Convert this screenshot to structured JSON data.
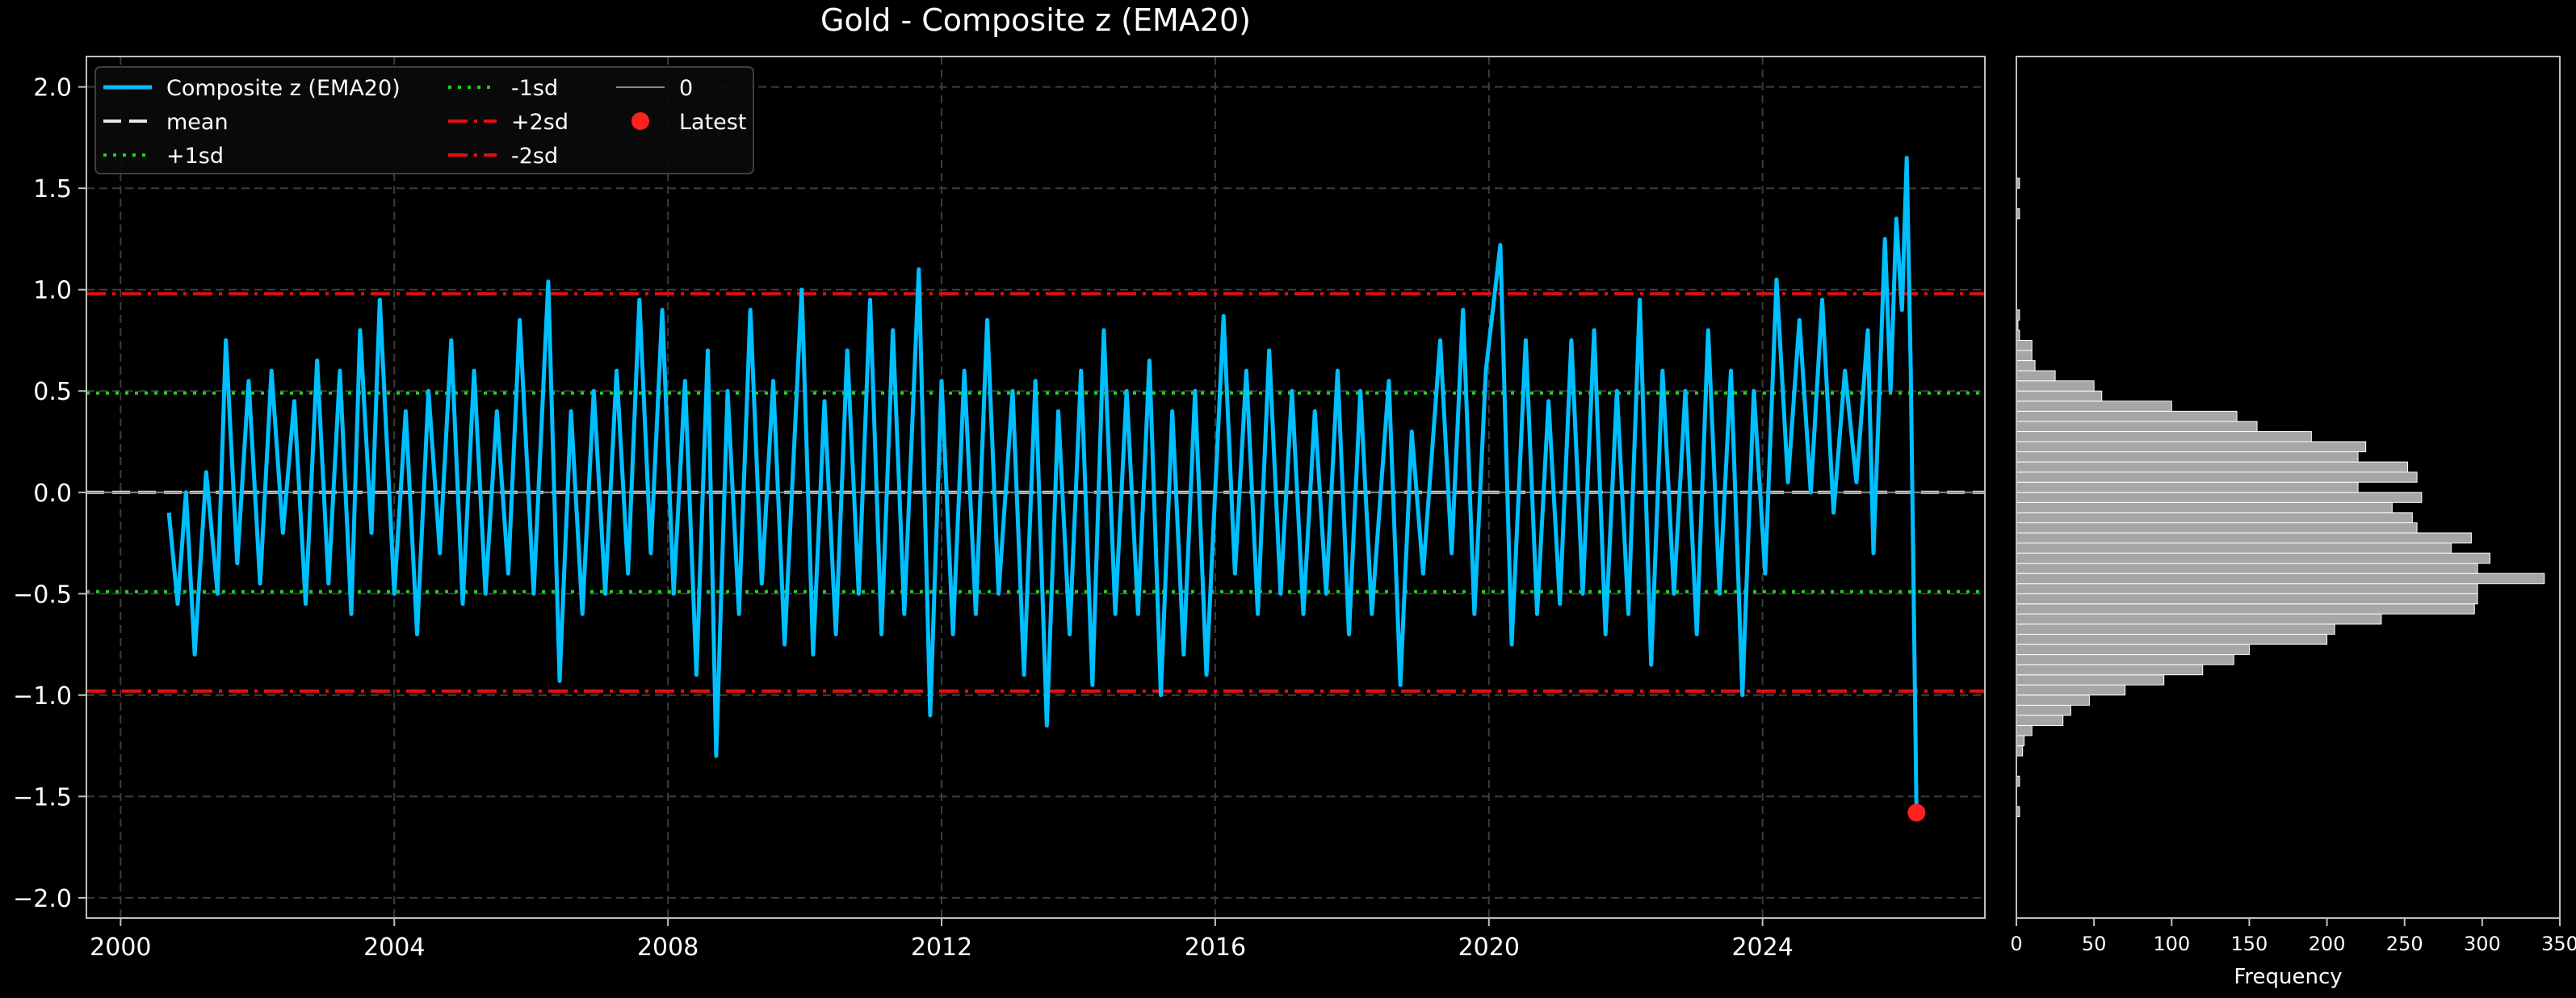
{
  "chart_data": [
    {
      "type": "line",
      "title": "Gold - Composite z (EMA20)",
      "xlabel": "",
      "ylabel": "",
      "xlim": [
        "1999-07-01",
        "2027-04-01"
      ],
      "ylim": [
        -2.1,
        2.15
      ],
      "x_ticks": [
        "2000",
        "2004",
        "2008",
        "2012",
        "2016",
        "2020",
        "2024"
      ],
      "y_ticks": [
        "2.0",
        "1.5",
        "1.0",
        "0.5",
        "0.0",
        "−0.5",
        "−1.0",
        "−1.5",
        "−2.0"
      ],
      "grid": true,
      "legend_position": "top-left",
      "legend": [
        "Composite z (EMA20)",
        "mean",
        "+1sd",
        "-1sd",
        "+2sd",
        "-2sd",
        "0",
        "Latest"
      ],
      "reference_lines": [
        {
          "name": "mean",
          "y": 0.0,
          "style": "dashed",
          "color": "#e6e6e6"
        },
        {
          "name": "+1sd",
          "y": 0.49,
          "style": "dotted",
          "color": "#22cc22"
        },
        {
          "name": "-1sd",
          "y": -0.49,
          "style": "dotted",
          "color": "#22cc22"
        },
        {
          "name": "+2sd",
          "y": 0.98,
          "style": "dashdot",
          "color": "#e01010"
        },
        {
          "name": "-2sd",
          "y": -0.98,
          "style": "dashdot",
          "color": "#e01010"
        },
        {
          "name": "0",
          "y": 0.0,
          "style": "solid",
          "color": "#888888"
        }
      ],
      "series": [
        {
          "name": "Composite z (EMA20)",
          "color": "#00bfff",
          "points": [
            [
              "2000-09-15",
              -0.1
            ],
            [
              "2000-11-01",
              -0.55
            ],
            [
              "2000-12-15",
              0.0
            ],
            [
              "2001-02-01",
              -0.8
            ],
            [
              "2001-04-01",
              0.1
            ],
            [
              "2001-06-01",
              -0.5
            ],
            [
              "2001-07-15",
              0.75
            ],
            [
              "2001-09-15",
              -0.35
            ],
            [
              "2001-11-15",
              0.55
            ],
            [
              "2002-01-15",
              -0.45
            ],
            [
              "2002-03-15",
              0.6
            ],
            [
              "2002-05-15",
              -0.2
            ],
            [
              "2002-07-15",
              0.45
            ],
            [
              "2002-09-15",
              -0.55
            ],
            [
              "2002-11-15",
              0.65
            ],
            [
              "2003-01-15",
              -0.45
            ],
            [
              "2003-03-15",
              0.6
            ],
            [
              "2003-05-15",
              -0.6
            ],
            [
              "2003-07-01",
              0.8
            ],
            [
              "2003-09-01",
              -0.2
            ],
            [
              "2003-10-15",
              0.95
            ],
            [
              "2004-01-01",
              -0.5
            ],
            [
              "2004-03-01",
              0.4
            ],
            [
              "2004-05-01",
              -0.7
            ],
            [
              "2004-07-01",
              0.5
            ],
            [
              "2004-09-01",
              -0.3
            ],
            [
              "2004-11-01",
              0.75
            ],
            [
              "2005-01-01",
              -0.55
            ],
            [
              "2005-03-01",
              0.6
            ],
            [
              "2005-05-01",
              -0.5
            ],
            [
              "2005-07-01",
              0.4
            ],
            [
              "2005-09-01",
              -0.4
            ],
            [
              "2005-11-01",
              0.85
            ],
            [
              "2006-01-15",
              -0.5
            ],
            [
              "2006-04-01",
              1.04
            ],
            [
              "2006-06-01",
              -0.93
            ],
            [
              "2006-08-01",
              0.4
            ],
            [
              "2006-10-01",
              -0.6
            ],
            [
              "2006-12-01",
              0.5
            ],
            [
              "2007-02-01",
              -0.5
            ],
            [
              "2007-04-01",
              0.6
            ],
            [
              "2007-06-01",
              -0.4
            ],
            [
              "2007-08-01",
              0.95
            ],
            [
              "2007-10-01",
              -0.3
            ],
            [
              "2007-12-01",
              0.9
            ],
            [
              "2008-02-01",
              -0.5
            ],
            [
              "2008-04-01",
              0.55
            ],
            [
              "2008-06-01",
              -0.9
            ],
            [
              "2008-08-01",
              0.7
            ],
            [
              "2008-09-15",
              -1.3
            ],
            [
              "2008-11-15",
              0.5
            ],
            [
              "2009-01-15",
              -0.6
            ],
            [
              "2009-03-15",
              0.9
            ],
            [
              "2009-05-15",
              -0.45
            ],
            [
              "2009-07-15",
              0.55
            ],
            [
              "2009-09-15",
              -0.75
            ],
            [
              "2009-12-15",
              1.0
            ],
            [
              "2010-02-15",
              -0.8
            ],
            [
              "2010-04-15",
              0.45
            ],
            [
              "2010-06-15",
              -0.7
            ],
            [
              "2010-08-15",
              0.7
            ],
            [
              "2010-10-15",
              -0.5
            ],
            [
              "2010-12-15",
              0.95
            ],
            [
              "2011-02-15",
              -0.7
            ],
            [
              "2011-04-15",
              0.8
            ],
            [
              "2011-06-15",
              -0.6
            ],
            [
              "2011-09-01",
              1.1
            ],
            [
              "2011-11-01",
              -1.1
            ],
            [
              "2012-01-01",
              0.55
            ],
            [
              "2012-03-01",
              -0.7
            ],
            [
              "2012-05-01",
              0.6
            ],
            [
              "2012-07-01",
              -0.6
            ],
            [
              "2012-09-01",
              0.85
            ],
            [
              "2012-11-01",
              -0.5
            ],
            [
              "2013-01-15",
              0.5
            ],
            [
              "2013-03-15",
              -0.9
            ],
            [
              "2013-05-15",
              0.55
            ],
            [
              "2013-07-15",
              -1.15
            ],
            [
              "2013-09-15",
              0.4
            ],
            [
              "2013-11-15",
              -0.7
            ],
            [
              "2014-01-15",
              0.6
            ],
            [
              "2014-03-15",
              -0.95
            ],
            [
              "2014-05-15",
              0.8
            ],
            [
              "2014-07-15",
              -0.6
            ],
            [
              "2014-09-15",
              0.5
            ],
            [
              "2014-11-15",
              -0.6
            ],
            [
              "2015-01-15",
              0.65
            ],
            [
              "2015-03-15",
              -1.0
            ],
            [
              "2015-05-15",
              0.4
            ],
            [
              "2015-07-15",
              -0.8
            ],
            [
              "2015-09-15",
              0.5
            ],
            [
              "2015-11-15",
              -0.9
            ],
            [
              "2016-02-15",
              0.87
            ],
            [
              "2016-04-15",
              -0.4
            ],
            [
              "2016-06-15",
              0.6
            ],
            [
              "2016-08-15",
              -0.6
            ],
            [
              "2016-10-15",
              0.7
            ],
            [
              "2016-12-15",
              -0.5
            ],
            [
              "2017-02-15",
              0.5
            ],
            [
              "2017-04-15",
              -0.6
            ],
            [
              "2017-06-15",
              0.4
            ],
            [
              "2017-08-15",
              -0.5
            ],
            [
              "2017-10-15",
              0.6
            ],
            [
              "2017-12-15",
              -0.7
            ],
            [
              "2018-02-15",
              0.5
            ],
            [
              "2018-04-15",
              -0.6
            ],
            [
              "2018-07-15",
              0.55
            ],
            [
              "2018-09-15",
              -0.95
            ],
            [
              "2018-11-15",
              0.3
            ],
            [
              "2019-01-15",
              -0.4
            ],
            [
              "2019-04-15",
              0.75
            ],
            [
              "2019-06-15",
              -0.3
            ],
            [
              "2019-08-15",
              0.9
            ],
            [
              "2019-10-15",
              -0.6
            ],
            [
              "2019-12-15",
              0.6
            ],
            [
              "2020-03-01",
              1.22
            ],
            [
              "2020-05-01",
              -0.75
            ],
            [
              "2020-07-15",
              0.75
            ],
            [
              "2020-09-15",
              -0.6
            ],
            [
              "2020-11-15",
              0.45
            ],
            [
              "2021-01-15",
              -0.55
            ],
            [
              "2021-03-15",
              0.75
            ],
            [
              "2021-05-15",
              -0.5
            ],
            [
              "2021-07-15",
              0.8
            ],
            [
              "2021-09-15",
              -0.7
            ],
            [
              "2021-11-15",
              0.5
            ],
            [
              "2022-01-15",
              -0.6
            ],
            [
              "2022-03-15",
              0.95
            ],
            [
              "2022-05-15",
              -0.85
            ],
            [
              "2022-07-15",
              0.6
            ],
            [
              "2022-09-15",
              -0.5
            ],
            [
              "2022-11-15",
              0.5
            ],
            [
              "2023-01-15",
              -0.7
            ],
            [
              "2023-03-15",
              0.8
            ],
            [
              "2023-05-15",
              -0.5
            ],
            [
              "2023-07-15",
              0.6
            ],
            [
              "2023-09-15",
              -1.0
            ],
            [
              "2023-11-15",
              0.5
            ],
            [
              "2024-01-15",
              -0.4
            ],
            [
              "2024-03-15",
              1.05
            ],
            [
              "2024-05-15",
              0.05
            ],
            [
              "2024-07-15",
              0.85
            ],
            [
              "2024-09-15",
              0.0
            ],
            [
              "2024-11-15",
              0.95
            ],
            [
              "2025-01-15",
              -0.1
            ],
            [
              "2025-03-15",
              0.6
            ],
            [
              "2025-05-15",
              0.05
            ],
            [
              "2025-07-15",
              0.8
            ],
            [
              "2025-08-15",
              -0.3
            ],
            [
              "2025-10-15",
              1.25
            ],
            [
              "2025-11-15",
              0.5
            ],
            [
              "2025-12-15",
              1.35
            ],
            [
              "2026-01-15",
              0.9
            ],
            [
              "2026-02-10",
              1.65
            ],
            [
              "2026-03-01",
              0.6
            ],
            [
              "2026-04-01",
              -1.58
            ]
          ]
        }
      ],
      "latest": {
        "x": "2026-04-01",
        "y": -1.58,
        "color": "#ff2020"
      }
    },
    {
      "type": "bar",
      "orientation": "horizontal",
      "xlabel": "Frequency",
      "ylabel": "",
      "xlim": [
        0,
        350
      ],
      "x_ticks": [
        "0",
        "50",
        "100",
        "150",
        "200",
        "250",
        "300",
        "350"
      ],
      "bar_color": "#a6a6a6",
      "bin_edges": [
        -1.6,
        -1.55,
        -1.5,
        -1.45,
        -1.4,
        -1.35,
        -1.3,
        -1.25,
        -1.2,
        -1.15,
        -1.1,
        -1.05,
        -1.0,
        -0.95,
        -0.9,
        -0.85,
        -0.8,
        -0.75,
        -0.7,
        -0.65,
        -0.6,
        -0.55,
        -0.5,
        -0.45,
        -0.4,
        -0.35,
        -0.3,
        -0.25,
        -0.2,
        -0.15,
        -0.1,
        -0.05,
        0.0,
        0.05,
        0.1,
        0.15,
        0.2,
        0.25,
        0.3,
        0.35,
        0.4,
        0.45,
        0.5,
        0.55,
        0.6,
        0.65,
        0.7,
        0.75,
        0.8,
        0.85,
        0.9,
        0.95,
        1.0,
        1.05,
        1.1,
        1.15,
        1.2,
        1.25,
        1.3,
        1.35,
        1.4,
        1.45,
        1.5,
        1.55,
        1.6,
        1.65
      ],
      "values": [
        2,
        0,
        0,
        2,
        0,
        0,
        4,
        5,
        10,
        30,
        35,
        47,
        70,
        95,
        120,
        140,
        150,
        200,
        205,
        235,
        295,
        297,
        297,
        340,
        297,
        305,
        280,
        293,
        258,
        255,
        242,
        261,
        220,
        258,
        252,
        220,
        225,
        190,
        155,
        142,
        100,
        55,
        50,
        25,
        12,
        10,
        10,
        2,
        1,
        2,
        0,
        0,
        0,
        0,
        0,
        0,
        0,
        0,
        0,
        2,
        0,
        0,
        2,
        0,
        0
      ]
    }
  ]
}
